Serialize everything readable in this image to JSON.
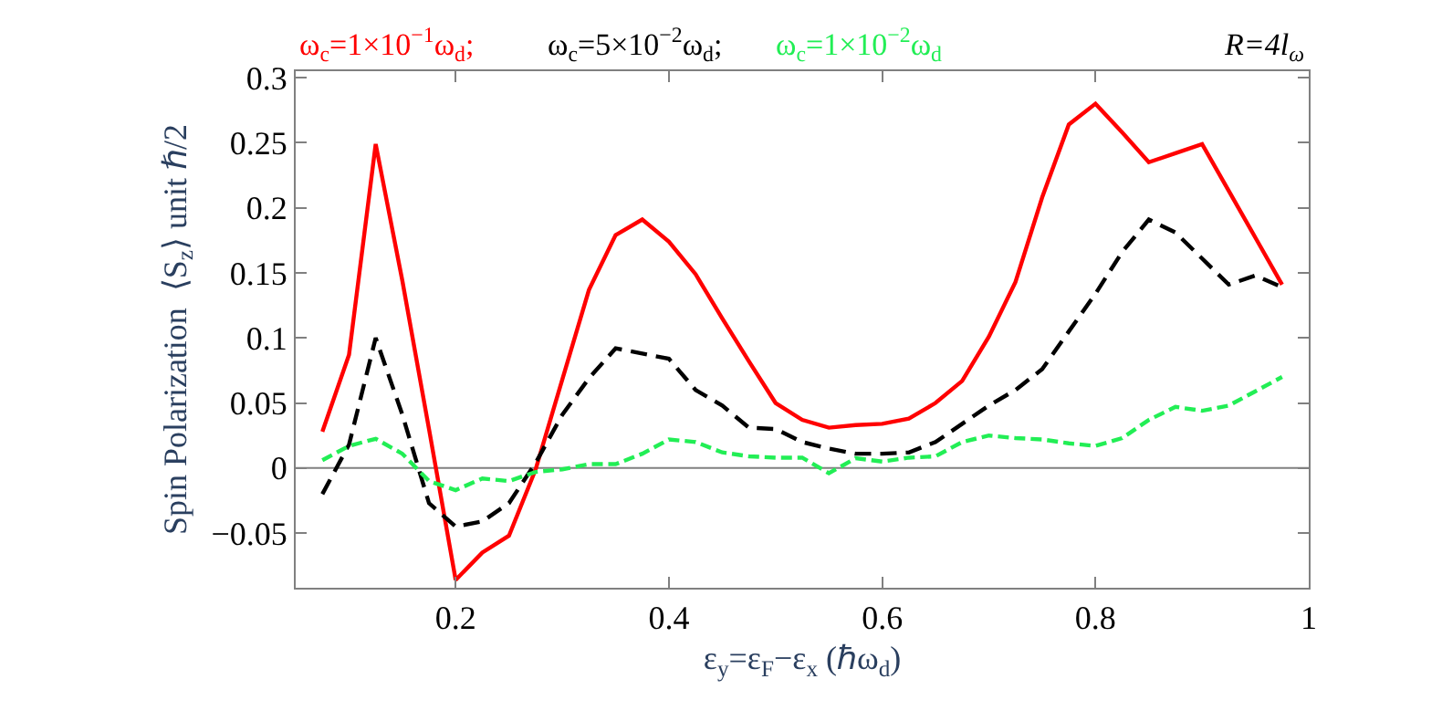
{
  "chart_data": {
    "type": "line",
    "xlabel": "ε$_{y}$=ε$_{F}$−ε$_{x}$ (ℏω$_{d}$)",
    "ylabel": "Spin Polarization  ⟨S$_{z}$⟩ unit ℏ/2",
    "annotations": [
      "R=4l$_{ω}$"
    ],
    "x": [
      0.075,
      0.1,
      0.125,
      0.15,
      0.175,
      0.2,
      0.225,
      0.25,
      0.275,
      0.3,
      0.325,
      0.35,
      0.375,
      0.4,
      0.425,
      0.45,
      0.475,
      0.5,
      0.525,
      0.55,
      0.575,
      0.6,
      0.625,
      0.65,
      0.675,
      0.7,
      0.725,
      0.75,
      0.775,
      0.8,
      0.825,
      0.85,
      0.875,
      0.9,
      0.925,
      0.95,
      0.975
    ],
    "series": [
      {
        "name": "ω$_{c}$=1×10$^{−1}$ω$_{d}$;",
        "color": "#ff0000",
        "line_style": "solid",
        "values": [
          0.028,
          0.087,
          0.249,
          0.144,
          0.03,
          -0.086,
          -0.065,
          -0.052,
          -0.001,
          0.068,
          0.137,
          0.179,
          0.191,
          0.174,
          0.149,
          0.115,
          0.082,
          0.05,
          0.037,
          0.031,
          0.033,
          0.034,
          0.038,
          0.05,
          0.067,
          0.101,
          0.143,
          0.208,
          0.264,
          0.28,
          0.258,
          0.235,
          0.242,
          0.249,
          0.213,
          0.177,
          0.141
        ]
      },
      {
        "name": "ω$_{c}$=5×10$^{−2}$ω$_{d}$;",
        "color": "#000000",
        "line_style": "dashed",
        "values": [
          -0.02,
          0.018,
          0.1,
          0.041,
          -0.027,
          -0.045,
          -0.041,
          -0.027,
          0.004,
          0.041,
          0.069,
          0.092,
          0.088,
          0.084,
          0.06,
          0.048,
          0.031,
          0.03,
          0.02,
          0.015,
          0.011,
          0.011,
          0.012,
          0.02,
          0.034,
          0.048,
          0.06,
          0.076,
          0.105,
          0.134,
          0.166,
          0.191,
          0.181,
          0.161,
          0.141,
          0.148,
          0.139
        ]
      },
      {
        "name": "ω$_{c}$=1×10$^{−2}$ω$_{d}$",
        "color": "#22ee55",
        "line_style": "dashed",
        "values": [
          0.006,
          0.017,
          0.0225,
          0.011,
          -0.01,
          -0.017,
          -0.008,
          -0.01,
          -0.003,
          -0.001,
          0.003,
          0.003,
          0.011,
          0.022,
          0.02,
          0.012,
          0.009,
          0.008,
          0.008,
          -0.004,
          0.0075,
          0.005,
          0.008,
          0.009,
          0.02,
          0.025,
          0.023,
          0.022,
          0.019,
          0.017,
          0.023,
          0.037,
          0.047,
          0.044,
          0.048,
          0.059,
          0.07
        ]
      }
    ],
    "xlim": [
      0.05,
      1.0
    ],
    "ylim": [
      -0.092,
      0.305
    ],
    "xticks": [
      0.2,
      0.4,
      0.6,
      0.8,
      1
    ],
    "yticks": [
      -0.05,
      0,
      0.05,
      0.1,
      0.15,
      0.2,
      0.25,
      0.3
    ],
    "ref_lines": [
      {
        "axis": "y",
        "value": 0,
        "color": "#808080",
        "line_style": "solid"
      }
    ],
    "grid": false,
    "marker": "none"
  }
}
